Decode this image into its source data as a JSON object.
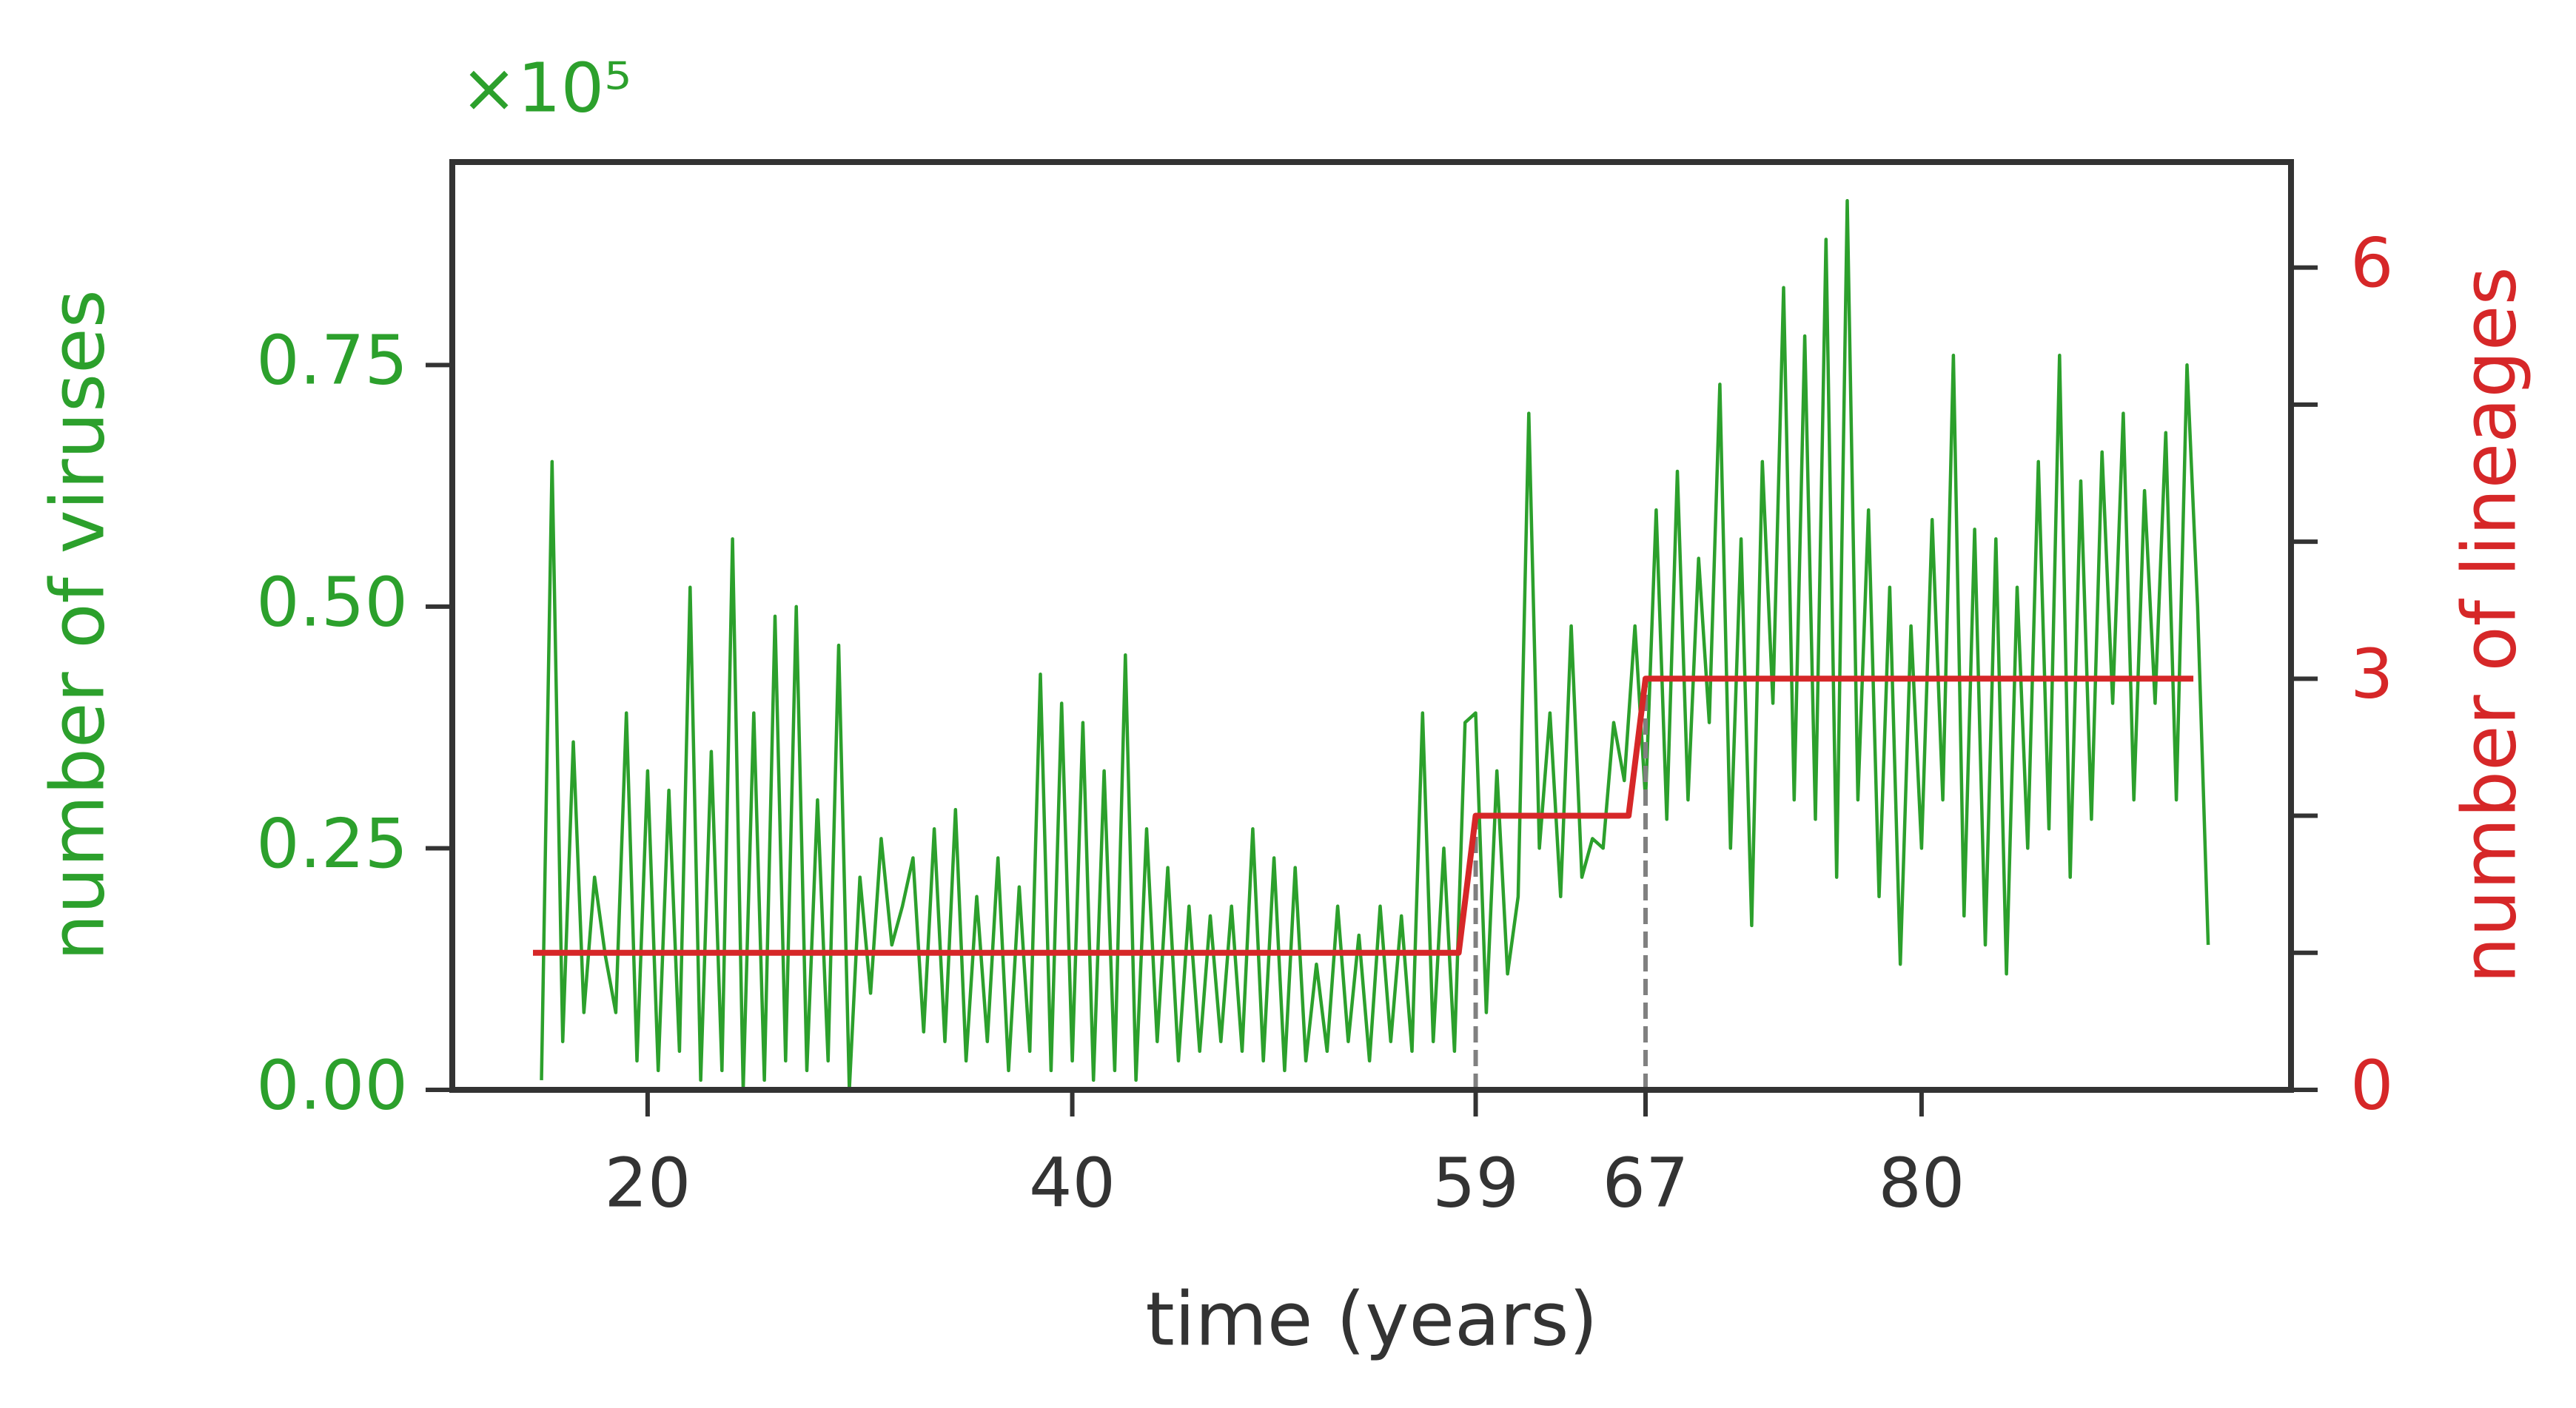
{
  "chart_data": {
    "type": "line",
    "x_label": "time (years)",
    "y_label": "number of viruses",
    "y2_label": "number of lineages",
    "y_offset_label": "×10⁵",
    "xlim": [
      10.8,
      97.4
    ],
    "xticks": [
      20,
      40,
      59,
      67,
      80
    ],
    "ylim": [
      0,
      0.96
    ],
    "yticks": [
      {
        "value": 0,
        "label": "0.00"
      },
      {
        "value": 0.25,
        "label": "0.25"
      },
      {
        "value": 0.5,
        "label": "0.50"
      },
      {
        "value": 0.75,
        "label": "0.75"
      }
    ],
    "y2lim": [
      0,
      6.77
    ],
    "y2ticks": [
      0,
      3,
      6
    ],
    "y2minor_ticks": [
      1,
      2,
      4,
      5
    ],
    "vlines": [
      59,
      67
    ],
    "vline_color": "#808080",
    "series": [
      {
        "name": "number of viruses",
        "color": "#2ca02c",
        "axis": "y",
        "x": [
          15,
          15.5,
          16,
          16.5,
          17,
          17.5,
          18,
          18.5,
          19,
          19.5,
          20,
          20.5,
          21,
          21.5,
          22,
          22.5,
          23,
          23.5,
          24,
          24.5,
          25,
          25.5,
          26,
          26.5,
          27,
          27.5,
          28,
          28.5,
          29,
          29.5,
          30,
          30.5,
          31,
          31.5,
          32,
          32.5,
          33,
          33.5,
          34,
          34.5,
          35,
          35.5,
          36,
          36.5,
          37,
          37.5,
          38,
          38.5,
          39,
          39.5,
          40,
          40.5,
          41,
          41.5,
          42,
          42.5,
          43,
          43.5,
          44,
          44.5,
          45,
          45.5,
          46,
          46.5,
          47,
          47.5,
          48,
          48.5,
          49,
          49.5,
          50,
          50.5,
          51,
          51.5,
          52,
          52.5,
          53,
          53.5,
          54,
          54.5,
          55,
          55.5,
          56,
          56.5,
          57,
          57.5,
          58,
          58.5,
          59,
          59.5,
          60,
          60.5,
          61,
          61.5,
          62,
          62.5,
          63,
          63.5,
          64,
          64.5,
          65,
          65.5,
          66,
          66.5,
          67,
          67.5,
          68,
          68.5,
          69,
          69.5,
          70,
          70.5,
          71,
          71.5,
          72,
          72.5,
          73,
          73.5,
          74,
          74.5,
          75,
          75.5,
          76,
          76.5,
          77,
          77.5,
          78,
          78.5,
          79,
          79.5,
          80,
          80.5,
          81,
          81.5,
          82,
          82.5,
          83,
          83.5,
          84,
          84.5,
          85,
          85.5,
          86,
          86.5,
          87,
          87.5,
          88,
          88.5,
          89,
          89.5,
          90,
          90.5,
          91,
          91.5,
          92,
          92.5,
          93,
          93.5
        ],
        "values": [
          0.01,
          0.65,
          0.05,
          0.36,
          0.08,
          0.22,
          0.14,
          0.08,
          0.39,
          0.03,
          0.33,
          0.02,
          0.31,
          0.04,
          0.52,
          0.01,
          0.35,
          0.02,
          0.57,
          0.0,
          0.39,
          0.01,
          0.49,
          0.03,
          0.5,
          0.02,
          0.3,
          0.03,
          0.46,
          0.0,
          0.22,
          0.1,
          0.26,
          0.15,
          0.19,
          0.24,
          0.06,
          0.27,
          0.05,
          0.29,
          0.03,
          0.2,
          0.05,
          0.24,
          0.02,
          0.21,
          0.04,
          0.43,
          0.02,
          0.4,
          0.03,
          0.38,
          0.01,
          0.33,
          0.02,
          0.45,
          0.01,
          0.27,
          0.05,
          0.23,
          0.03,
          0.19,
          0.04,
          0.18,
          0.05,
          0.19,
          0.04,
          0.27,
          0.03,
          0.24,
          0.02,
          0.23,
          0.03,
          0.13,
          0.04,
          0.19,
          0.05,
          0.16,
          0.03,
          0.19,
          0.05,
          0.18,
          0.04,
          0.39,
          0.05,
          0.25,
          0.04,
          0.38,
          0.39,
          0.08,
          0.33,
          0.12,
          0.2,
          0.7,
          0.25,
          0.39,
          0.2,
          0.48,
          0.22,
          0.26,
          0.25,
          0.38,
          0.32,
          0.48,
          0.3,
          0.6,
          0.28,
          0.64,
          0.3,
          0.55,
          0.38,
          0.73,
          0.25,
          0.57,
          0.17,
          0.65,
          0.4,
          0.83,
          0.3,
          0.78,
          0.28,
          0.88,
          0.22,
          0.92,
          0.3,
          0.6,
          0.2,
          0.52,
          0.13,
          0.48,
          0.25,
          0.59,
          0.3,
          0.76,
          0.18,
          0.58,
          0.15,
          0.57,
          0.12,
          0.52,
          0.25,
          0.65,
          0.27,
          0.76,
          0.22,
          0.63,
          0.28,
          0.66,
          0.4,
          0.7,
          0.3,
          0.62,
          0.4,
          0.68,
          0.3,
          0.75,
          0.5,
          0.15
        ]
      },
      {
        "name": "number of lineages",
        "color": "#d62728",
        "axis": "y2",
        "x": [
          14.6,
          58.2,
          59,
          66.2,
          67,
          92.8
        ],
        "values": [
          1,
          1,
          2,
          2,
          3,
          3
        ]
      }
    ]
  }
}
